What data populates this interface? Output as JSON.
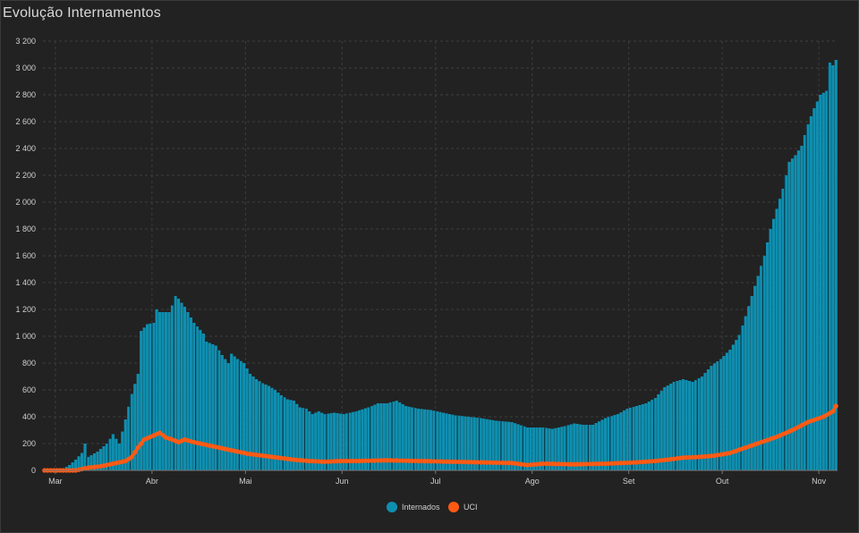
{
  "title": "Evolução Internamentos",
  "chart_data": {
    "type": "bar+line",
    "title": "Evolução Internamentos",
    "xlabel": "",
    "ylabel": "",
    "ylim": [
      0,
      3200
    ],
    "yticks": [
      0,
      200,
      400,
      600,
      800,
      1000,
      1200,
      1400,
      1600,
      1800,
      2000,
      2200,
      2400,
      2600,
      2800,
      3000,
      3200
    ],
    "ytick_labels": [
      "0",
      "200",
      "400",
      "600",
      "800",
      "1 000",
      "1 200",
      "1 400",
      "1 600",
      "1 800",
      "2 000",
      "2 200",
      "2 400",
      "2 600",
      "2 800",
      "3 000",
      "3 200"
    ],
    "grid": true,
    "legend_position": "bottom-center",
    "start_date": "2020-02-26",
    "day_count": 255,
    "months": [
      {
        "label": "Mar",
        "day_index": 4
      },
      {
        "label": "Abr",
        "day_index": 35
      },
      {
        "label": "Mai",
        "day_index": 65
      },
      {
        "label": "Jun",
        "day_index": 96
      },
      {
        "label": "Jul",
        "day_index": 126
      },
      {
        "label": "Ago",
        "day_index": 157
      },
      {
        "label": "Set",
        "day_index": 188
      },
      {
        "label": "Out",
        "day_index": 218
      },
      {
        "label": "Nov",
        "day_index": 249
      }
    ],
    "series": [
      {
        "name": "Internados",
        "type": "bar",
        "color": "#0f8fb0",
        "keypoints": [
          [
            0,
            0
          ],
          [
            5,
            0
          ],
          [
            8,
            40
          ],
          [
            10,
            80
          ],
          [
            12,
            130
          ],
          [
            13,
            200
          ],
          [
            14,
            100
          ],
          [
            17,
            140
          ],
          [
            20,
            200
          ],
          [
            22,
            270
          ],
          [
            24,
            200
          ],
          [
            26,
            380
          ],
          [
            28,
            570
          ],
          [
            30,
            720
          ],
          [
            31,
            1040
          ],
          [
            33,
            1090
          ],
          [
            35,
            1100
          ],
          [
            36,
            1200
          ],
          [
            37,
            1180
          ],
          [
            40,
            1180
          ],
          [
            41,
            1230
          ],
          [
            42,
            1300
          ],
          [
            43,
            1280
          ],
          [
            45,
            1220
          ],
          [
            48,
            1100
          ],
          [
            51,
            1020
          ],
          [
            52,
            960
          ],
          [
            55,
            930
          ],
          [
            57,
            860
          ],
          [
            59,
            800
          ],
          [
            60,
            870
          ],
          [
            62,
            830
          ],
          [
            64,
            800
          ],
          [
            66,
            720
          ],
          [
            68,
            680
          ],
          [
            70,
            650
          ],
          [
            72,
            630
          ],
          [
            74,
            600
          ],
          [
            76,
            560
          ],
          [
            78,
            530
          ],
          [
            80,
            520
          ],
          [
            82,
            470
          ],
          [
            84,
            460
          ],
          [
            86,
            420
          ],
          [
            88,
            440
          ],
          [
            90,
            420
          ],
          [
            93,
            430
          ],
          [
            96,
            420
          ],
          [
            100,
            440
          ],
          [
            104,
            470
          ],
          [
            107,
            500
          ],
          [
            110,
            500
          ],
          [
            113,
            520
          ],
          [
            116,
            480
          ],
          [
            120,
            460
          ],
          [
            124,
            450
          ],
          [
            128,
            430
          ],
          [
            132,
            410
          ],
          [
            136,
            400
          ],
          [
            140,
            390
          ],
          [
            145,
            370
          ],
          [
            150,
            360
          ],
          [
            155,
            320
          ],
          [
            160,
            320
          ],
          [
            163,
            310
          ],
          [
            167,
            330
          ],
          [
            170,
            350
          ],
          [
            173,
            340
          ],
          [
            176,
            340
          ],
          [
            180,
            390
          ],
          [
            184,
            420
          ],
          [
            187,
            460
          ],
          [
            190,
            480
          ],
          [
            193,
            500
          ],
          [
            196,
            540
          ],
          [
            199,
            620
          ],
          [
            202,
            660
          ],
          [
            205,
            680
          ],
          [
            208,
            660
          ],
          [
            211,
            700
          ],
          [
            214,
            780
          ],
          [
            217,
            830
          ],
          [
            220,
            900
          ],
          [
            223,
            1010
          ],
          [
            225,
            1150
          ],
          [
            227,
            1300
          ],
          [
            229,
            1450
          ],
          [
            231,
            1600
          ],
          [
            233,
            1800
          ],
          [
            235,
            1950
          ],
          [
            237,
            2100
          ],
          [
            239,
            2300
          ],
          [
            241,
            2350
          ],
          [
            243,
            2420
          ],
          [
            245,
            2580
          ],
          [
            247,
            2700
          ],
          [
            249,
            2800
          ],
          [
            251,
            2830
          ],
          [
            252,
            3040
          ],
          [
            253,
            3020
          ],
          [
            254,
            3060
          ]
        ]
      },
      {
        "name": "UCI",
        "type": "line",
        "color": "#ff5a14",
        "keypoints": [
          [
            0,
            0
          ],
          [
            10,
            0
          ],
          [
            14,
            20
          ],
          [
            18,
            30
          ],
          [
            22,
            50
          ],
          [
            26,
            70
          ],
          [
            28,
            100
          ],
          [
            30,
            170
          ],
          [
            32,
            230
          ],
          [
            35,
            260
          ],
          [
            37,
            280
          ],
          [
            39,
            245
          ],
          [
            41,
            230
          ],
          [
            43,
            210
          ],
          [
            45,
            230
          ],
          [
            48,
            210
          ],
          [
            52,
            190
          ],
          [
            56,
            170
          ],
          [
            60,
            150
          ],
          [
            65,
            125
          ],
          [
            70,
            110
          ],
          [
            75,
            95
          ],
          [
            80,
            80
          ],
          [
            85,
            70
          ],
          [
            90,
            65
          ],
          [
            95,
            70
          ],
          [
            100,
            70
          ],
          [
            110,
            75
          ],
          [
            120,
            70
          ],
          [
            130,
            65
          ],
          [
            140,
            60
          ],
          [
            150,
            55
          ],
          [
            155,
            40
          ],
          [
            160,
            50
          ],
          [
            170,
            45
          ],
          [
            180,
            50
          ],
          [
            190,
            60
          ],
          [
            196,
            70
          ],
          [
            200,
            80
          ],
          [
            205,
            95
          ],
          [
            210,
            100
          ],
          [
            215,
            110
          ],
          [
            220,
            130
          ],
          [
            225,
            170
          ],
          [
            230,
            210
          ],
          [
            235,
            250
          ],
          [
            240,
            300
          ],
          [
            245,
            360
          ],
          [
            250,
            400
          ],
          [
            253,
            440
          ],
          [
            254,
            480
          ]
        ]
      }
    ],
    "legend": [
      {
        "label": "Internados",
        "color": "#0f8fb0"
      },
      {
        "label": "UCI",
        "color": "#ff5a14"
      }
    ]
  }
}
